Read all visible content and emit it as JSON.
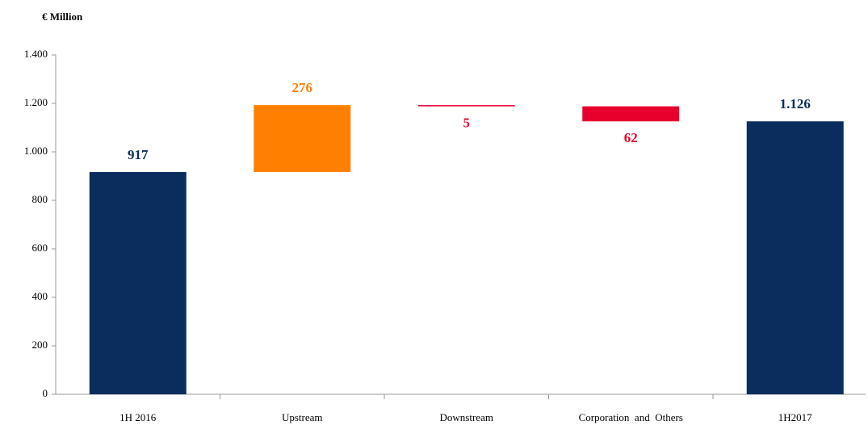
{
  "chart_data": {
    "type": "waterfall",
    "y_label": "€ Million",
    "categories": [
      "1H 2016",
      "Upstream",
      "Downstream",
      "Corporation  and  Others",
      "1H2017"
    ],
    "values": [
      917,
      276,
      -5,
      -62,
      1126
    ],
    "value_labels": [
      "917",
      "276",
      "5",
      "62",
      "1.126"
    ],
    "measure": [
      "absolute",
      "relative",
      "relative",
      "relative",
      "total"
    ],
    "colors": [
      "#0a2d5e",
      "#ff8000",
      "#e8002d",
      "#e8002d",
      "#0a2d5e"
    ],
    "ylim": [
      0,
      1400
    ],
    "yticks": [
      0,
      200,
      400,
      600,
      800,
      {
        "value": 1000,
        "label": "1.000"
      },
      {
        "value": 1200,
        "label": "1.200"
      },
      {
        "value": 1400,
        "label": "1.400"
      }
    ],
    "grid": false
  }
}
